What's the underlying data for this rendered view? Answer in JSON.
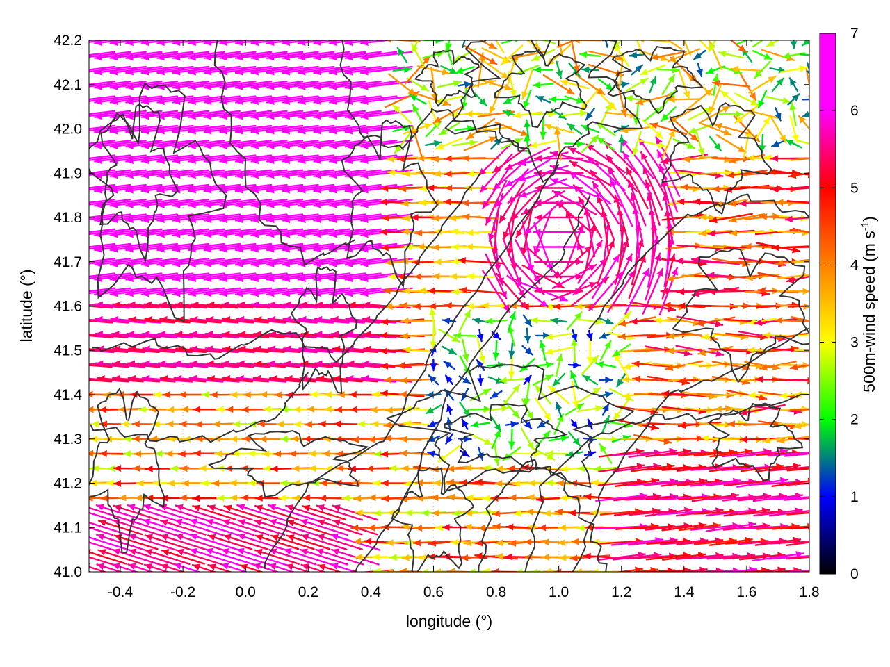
{
  "chart_data": {
    "type": "vector-field",
    "xlabel": "longitude (°)",
    "ylabel": "latitude (°)",
    "xlim": [
      -0.5,
      1.8
    ],
    "ylim": [
      41.0,
      42.2
    ],
    "x_ticks": [
      "-0.4",
      "-0.2",
      "0.0",
      "0.2",
      "0.4",
      "0.6",
      "0.8",
      "1.0",
      "1.2",
      "1.4",
      "1.6",
      "1.8"
    ],
    "y_ticks": [
      "41.0",
      "41.1",
      "41.2",
      "41.3",
      "41.4",
      "41.5",
      "41.6",
      "41.7",
      "41.8",
      "41.9",
      "42.0",
      "42.1",
      "42.2"
    ],
    "colorbar": {
      "label_main": "500m-wind speed (m s",
      "label_sup": "-1",
      "label_end": ")",
      "range": [
        0,
        7
      ],
      "ticks": [
        "0",
        "1",
        "2",
        "3",
        "4",
        "5",
        "6",
        "7"
      ],
      "colormap": [
        "#000000",
        "#0000ff",
        "#00ff00",
        "#ffff00",
        "#ff8000",
        "#ff0000",
        "#ff00ff"
      ]
    },
    "grid": true,
    "contour_color": "#333333",
    "field_regions": [
      {
        "region": "northwest",
        "lon": [
          -0.5,
          0.4
        ],
        "lat": [
          41.6,
          42.2
        ],
        "speed": 7,
        "direction": "westward"
      },
      {
        "region": "central-west",
        "lon": [
          -0.5,
          0.4
        ],
        "lat": [
          41.4,
          41.6
        ],
        "speed": 6,
        "direction": "westward"
      },
      {
        "region": "southwest",
        "lon": [
          -0.5,
          0.3
        ],
        "lat": [
          41.0,
          41.4
        ],
        "speed": 4,
        "direction": "westward"
      },
      {
        "region": "south-east",
        "lon": [
          1.1,
          1.8
        ],
        "lat": [
          41.0,
          41.3
        ],
        "speed": 6,
        "direction": "eastward"
      },
      {
        "region": "central calm",
        "lon": [
          0.6,
          1.2
        ],
        "lat": [
          41.2,
          41.6
        ],
        "speed": 2,
        "direction": "variable"
      },
      {
        "region": "eddy",
        "lon": [
          0.8,
          1.3
        ],
        "lat": [
          41.6,
          41.9
        ],
        "speed": 6.5,
        "direction": "cyclonic"
      },
      {
        "region": "north-east",
        "lon": [
          1.1,
          1.8
        ],
        "lat": [
          41.8,
          42.2
        ],
        "speed": 4,
        "direction": "variable"
      }
    ]
  }
}
